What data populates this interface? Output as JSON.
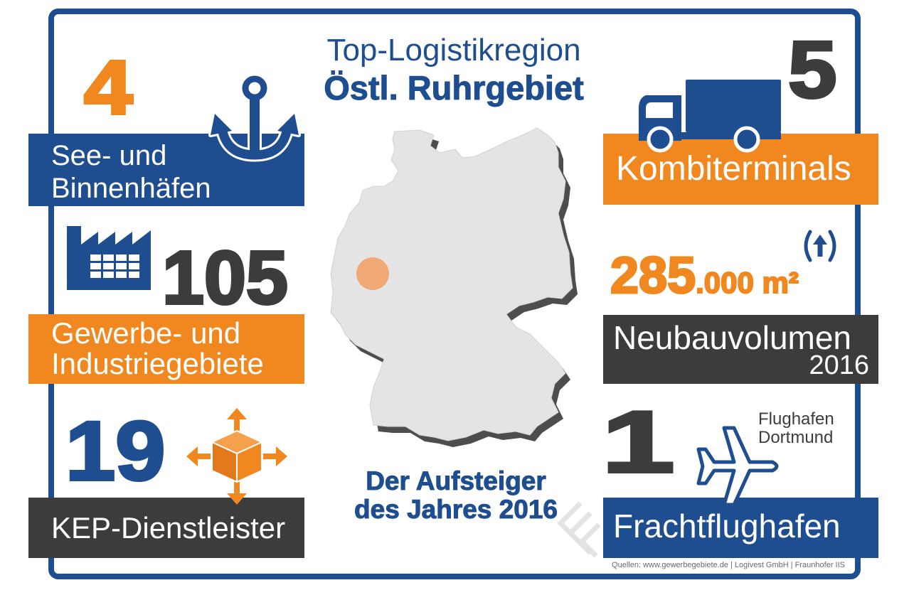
{
  "title": {
    "line1": "Top-Logistikregion",
    "line2": "Östl. Ruhrgebiet"
  },
  "stats": {
    "ports": {
      "number": "4",
      "label_line1": "See- und",
      "label_line2": "Binnenhäfen",
      "icon": "anchor-icon"
    },
    "industrial_areas": {
      "number": "105",
      "label_line1": "Gewerbe- und",
      "label_line2": "Industriegebiete",
      "icon": "factory-icon"
    },
    "parcel_services": {
      "number": "19",
      "label": "KEP-Dienstleister",
      "icon": "package-arrows-icon"
    },
    "combi_terminals": {
      "number": "5",
      "label": "Kombiterminals",
      "icon": "truck-icon"
    },
    "new_construction": {
      "value_main": "285",
      "value_rest": ".000 m²",
      "label": "Neubauvolumen",
      "year": "2016",
      "trend_icon": "up-arrow-in-parentheses-icon"
    },
    "cargo_airport": {
      "number": "1",
      "airport_line1": "Flughafen",
      "airport_line2": "Dortmund",
      "label": "Frachtflughafen",
      "icon": "airplane-icon"
    }
  },
  "tagline": {
    "line1": "Der Aufsteiger",
    "line2": "des Jahres 2016"
  },
  "map": {
    "icon": "germany-map",
    "marker": "region-marker"
  },
  "watermark_icon": "logivest-logo-icon",
  "sources": "Quellen: www.gewerbegebiete.de | Logivest GmbH | Fraunhofer IIS",
  "colors": {
    "blue": "#1e4e8f",
    "orange": "#f0871f",
    "dark": "#3c3c3c",
    "map": "#e4e4e4",
    "marker": "#f2a46b"
  }
}
